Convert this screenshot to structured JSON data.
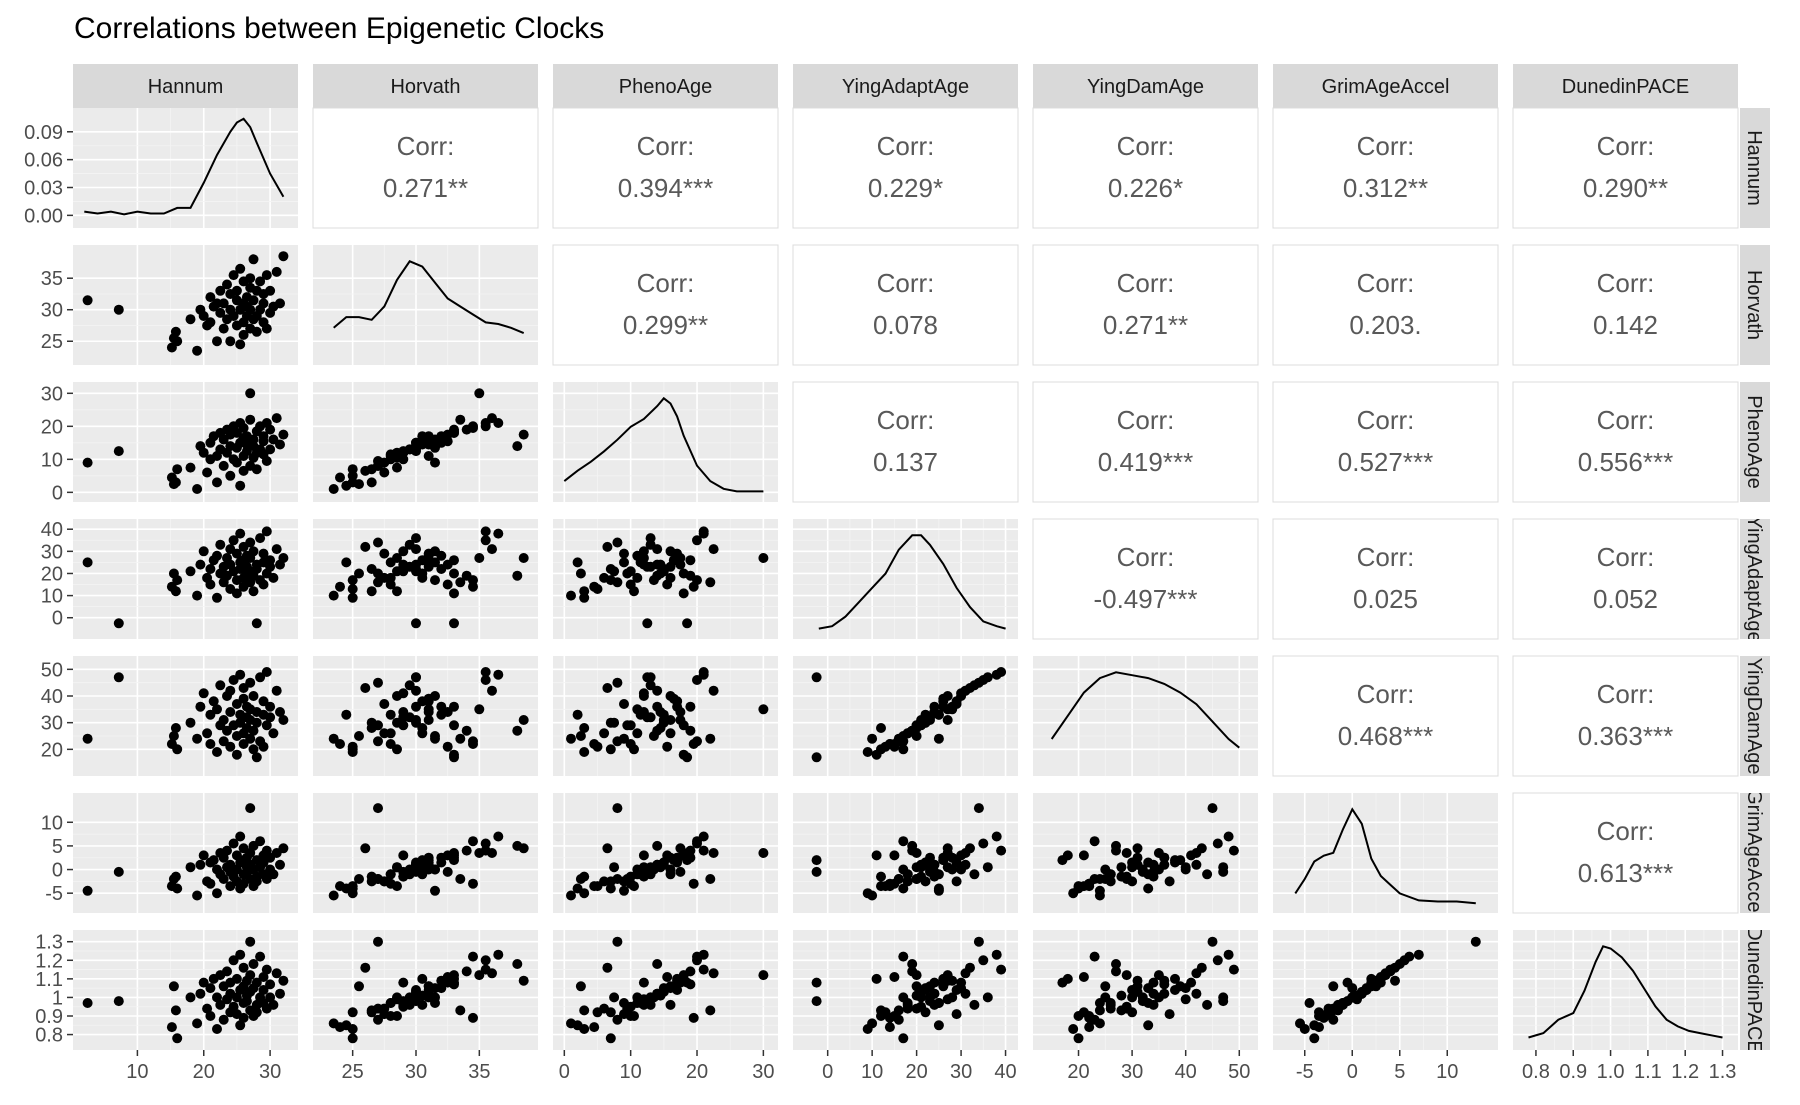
{
  "chart_data": {
    "type": "scatter",
    "title": "Correlations between  Epigenetic Clocks",
    "variables": [
      "Hannum",
      "Horvath",
      "PhenoAge",
      "YingAdaptAge",
      "YingDamAge",
      "GrimAgeAccel",
      "DunedinPACE"
    ],
    "row_strip_labels": [
      "Hannum",
      "Horvath",
      "PhenoAge",
      "YingAdaptAge",
      "YingDamAge",
      "GrimAgeAccel",
      "DunedinPACE"
    ],
    "corr_label": "Corr:",
    "correlations": [
      {
        "row": "Hannum",
        "col": "Horvath",
        "value": "0.271**"
      },
      {
        "row": "Hannum",
        "col": "PhenoAge",
        "value": "0.394***"
      },
      {
        "row": "Hannum",
        "col": "YingAdaptAge",
        "value": "0.229*"
      },
      {
        "row": "Hannum",
        "col": "YingDamAge",
        "value": "0.226*"
      },
      {
        "row": "Hannum",
        "col": "GrimAgeAccel",
        "value": "0.312**"
      },
      {
        "row": "Hannum",
        "col": "DunedinPACE",
        "value": "0.290**"
      },
      {
        "row": "Horvath",
        "col": "PhenoAge",
        "value": "0.299**"
      },
      {
        "row": "Horvath",
        "col": "YingAdaptAge",
        "value": "0.078"
      },
      {
        "row": "Horvath",
        "col": "YingDamAge",
        "value": "0.271**"
      },
      {
        "row": "Horvath",
        "col": "GrimAgeAccel",
        "value": "0.203."
      },
      {
        "row": "Horvath",
        "col": "DunedinPACE",
        "value": "0.142"
      },
      {
        "row": "PhenoAge",
        "col": "YingAdaptAge",
        "value": "0.137"
      },
      {
        "row": "PhenoAge",
        "col": "YingDamAge",
        "value": "0.419***"
      },
      {
        "row": "PhenoAge",
        "col": "GrimAgeAccel",
        "value": "0.527***"
      },
      {
        "row": "PhenoAge",
        "col": "DunedinPACE",
        "value": "0.556***"
      },
      {
        "row": "YingAdaptAge",
        "col": "YingDamAge",
        "value": "-0.497***"
      },
      {
        "row": "YingAdaptAge",
        "col": "GrimAgeAccel",
        "value": "0.025"
      },
      {
        "row": "YingAdaptAge",
        "col": "DunedinPACE",
        "value": "0.052"
      },
      {
        "row": "YingDamAge",
        "col": "GrimAgeAccel",
        "value": "0.468***"
      },
      {
        "row": "YingDamAge",
        "col": "DunedinPACE",
        "value": "0.363***"
      },
      {
        "row": "GrimAgeAccel",
        "col": "DunedinPACE",
        "value": "0.613***"
      }
    ],
    "axes": {
      "Hannum": {
        "range": [
          1.5,
          33
        ],
        "ticks": [
          10,
          20,
          30
        ]
      },
      "Horvath": {
        "range": [
          22.5,
          39
        ],
        "ticks": [
          25,
          30,
          35
        ]
      },
      "PhenoAge": {
        "range": [
          -0.5,
          31
        ],
        "ticks": [
          0,
          10,
          20,
          30
        ]
      },
      "YingAdaptAge": {
        "range": [
          -6,
          41
        ],
        "ticks": [
          0,
          10,
          20,
          30,
          40
        ]
      },
      "YingDamAge": {
        "range": [
          13,
          52
        ],
        "ticks": [
          20,
          30,
          40,
          50
        ]
      },
      "GrimAgeAccel": {
        "range": [
          -7.5,
          14.5
        ],
        "ticks": [
          -5,
          0,
          5,
          10
        ]
      },
      "DunedinPACE": {
        "range": [
          0.76,
          1.32
        ],
        "ticks": [
          0.8,
          0.9,
          1.0,
          1.1,
          1.2,
          1.3
        ]
      }
    },
    "diag_yaxis": {
      "range": [
        -0.005,
        0.107
      ],
      "ticks": [
        "0.00",
        "0.03",
        "0.06",
        "0.09"
      ]
    },
    "densities": {
      "Hannum": {
        "x": [
          2,
          4,
          6,
          8,
          10,
          12,
          14,
          16,
          18,
          20,
          22,
          24,
          25,
          26,
          27,
          28,
          30,
          32
        ],
        "y": [
          0.004,
          0.002,
          0.004,
          0.001,
          0.004,
          0.002,
          0.002,
          0.008,
          0.008,
          0.035,
          0.065,
          0.09,
          0.1,
          0.104,
          0.095,
          0.078,
          0.045,
          0.02
        ]
      },
      "Horvath": {
        "x": [
          23.5,
          24.5,
          25.5,
          26.5,
          27.5,
          28.5,
          29.5,
          30.5,
          31.5,
          32.5,
          33.5,
          34.5,
          35.5,
          36.5,
          37.5,
          38.5
        ],
        "y": [
          0.055,
          0.075,
          0.075,
          0.07,
          0.095,
          0.145,
          0.18,
          0.17,
          0.14,
          0.11,
          0.095,
          0.08,
          0.065,
          0.062,
          0.055,
          0.045
        ]
      },
      "PhenoAge": {
        "x": [
          0,
          2,
          4,
          6,
          8,
          10,
          12,
          14,
          15,
          16,
          17,
          18,
          20,
          22,
          24,
          26,
          28,
          30
        ],
        "y": [
          0.01,
          0.018,
          0.025,
          0.033,
          0.042,
          0.052,
          0.058,
          0.068,
          0.074,
          0.07,
          0.06,
          0.045,
          0.022,
          0.01,
          0.004,
          0.002,
          0.002,
          0.002
        ]
      },
      "YingAdaptAge": {
        "x": [
          -2,
          1,
          4,
          7,
          10,
          13,
          16,
          19,
          21,
          23,
          26,
          29,
          32,
          35,
          38,
          40
        ],
        "y": [
          0.001,
          0.002,
          0.006,
          0.012,
          0.018,
          0.024,
          0.034,
          0.04,
          0.04,
          0.036,
          0.028,
          0.018,
          0.01,
          0.004,
          0.002,
          0.001
        ]
      },
      "YingDamAge": {
        "x": [
          15,
          18,
          21,
          24,
          27,
          30,
          33,
          36,
          39,
          42,
          45,
          48,
          50
        ],
        "y": [
          0.01,
          0.018,
          0.026,
          0.031,
          0.033,
          0.032,
          0.031,
          0.029,
          0.026,
          0.022,
          0.016,
          0.01,
          0.007
        ]
      },
      "GrimAgeAccel": {
        "x": [
          -6,
          -5,
          -4,
          -3,
          -2,
          -1,
          0,
          1,
          2,
          3,
          4,
          5,
          7,
          9,
          11,
          13
        ],
        "y": [
          0.02,
          0.045,
          0.075,
          0.085,
          0.09,
          0.13,
          0.165,
          0.14,
          0.08,
          0.05,
          0.035,
          0.02,
          0.008,
          0.006,
          0.006,
          0.003
        ]
      },
      "DunedinPACE": {
        "x": [
          0.78,
          0.82,
          0.86,
          0.9,
          0.93,
          0.96,
          0.98,
          1.0,
          1.03,
          1.06,
          1.09,
          1.12,
          1.15,
          1.18,
          1.21,
          1.24,
          1.27,
          1.3
        ],
        "y": [
          0.2,
          0.4,
          1.0,
          1.3,
          2.3,
          3.6,
          4.3,
          4.2,
          3.8,
          3.2,
          2.4,
          1.6,
          1.0,
          0.7,
          0.5,
          0.4,
          0.3,
          0.2
        ]
      }
    },
    "samples": {
      "Hannum": [
        2.5,
        7.2,
        15.2,
        15.5,
        15.8,
        16.0,
        18.0,
        19.0,
        19.5,
        20.0,
        20.5,
        21.0,
        21.0,
        21.5,
        22.0,
        22.0,
        22.5,
        22.5,
        23.0,
        23.0,
        23.5,
        23.5,
        24.0,
        24.0,
        24.0,
        24.5,
        24.5,
        25.0,
        25.0,
        25.0,
        25.5,
        25.5,
        25.5,
        26.0,
        26.0,
        26.0,
        26.0,
        26.5,
        26.5,
        26.5,
        27.0,
        27.0,
        27.0,
        27.0,
        27.5,
        27.5,
        27.5,
        28.0,
        28.0,
        28.0,
        28.5,
        28.5,
        29.0,
        29.0,
        29.0,
        29.5,
        29.5,
        30.0,
        30.0,
        30.5,
        31.0,
        31.5,
        32.0
      ],
      "Horvath": [
        31.5,
        30.0,
        24.0,
        25.5,
        26.5,
        25.0,
        28.5,
        23.5,
        30.0,
        29.0,
        27.5,
        32.0,
        28.0,
        30.5,
        25.0,
        31.0,
        33.0,
        29.5,
        27.0,
        31.0,
        28.5,
        34.0,
        25.0,
        30.0,
        32.5,
        29.0,
        35.5,
        31.5,
        27.5,
        33.0,
        24.5,
        30.0,
        36.5,
        28.0,
        31.0,
        34.5,
        26.0,
        30.5,
        29.0,
        32.0,
        33.5,
        27.0,
        30.0,
        35.0,
        28.5,
        31.5,
        38.0,
        29.0,
        33.0,
        26.5,
        30.0,
        34.5,
        28.0,
        31.0,
        32.5,
        27.0,
        35.5,
        29.5,
        33.0,
        30.5,
        36.0,
        31.0,
        38.5
      ],
      "PhenoAge": [
        9.0,
        12.5,
        4.5,
        2.5,
        3.0,
        7.0,
        7.5,
        1.0,
        14.0,
        12.0,
        6.0,
        15.0,
        10.0,
        17.0,
        3.0,
        11.0,
        18.0,
        13.0,
        8.0,
        16.0,
        12.0,
        19.0,
        5.0,
        14.0,
        17.5,
        10.0,
        20.0,
        13.5,
        9.0,
        18.0,
        2.0,
        15.0,
        21.0,
        11.0,
        16.5,
        19.5,
        6.5,
        14.5,
        12.5,
        17.0,
        22.0,
        8.0,
        15.0,
        30.0,
        10.5,
        16.0,
        14.0,
        12.0,
        18.5,
        7.0,
        13.0,
        20.0,
        11.5,
        17.0,
        15.5,
        9.5,
        21.0,
        13.0,
        19.0,
        16.0,
        22.5,
        14.5,
        17.5
      ],
      "YingAdaptAge": [
        25.0,
        -2.5,
        14.0,
        20.0,
        12.0,
        17.0,
        21.0,
        10.0,
        24.0,
        30.0,
        18.0,
        22.0,
        15.0,
        26.0,
        9.0,
        28.0,
        20.0,
        33.0,
        16.0,
        23.0,
        27.0,
        19.0,
        13.0,
        31.0,
        24.0,
        21.0,
        35.0,
        17.0,
        29.0,
        11.0,
        25.0,
        22.0,
        38.0,
        18.0,
        26.0,
        14.0,
        32.0,
        20.0,
        23.0,
        28.0,
        16.0,
        34.0,
        21.0,
        27.0,
        12.0,
        30.0,
        19.0,
        24.0,
        -2.5,
        22.0,
        36.0,
        17.0,
        25.0,
        29.0,
        15.0,
        20.0,
        39.0,
        23.0,
        26.0,
        18.0,
        31.0,
        24.0,
        27.0
      ],
      "YingDamAge": [
        24.0,
        47.0,
        22.0,
        25.0,
        28.0,
        20.0,
        30.0,
        24.0,
        36.0,
        41.0,
        26.0,
        33.0,
        22.0,
        38.0,
        19.0,
        35.0,
        29.0,
        44.0,
        23.0,
        31.0,
        40.0,
        27.0,
        21.0,
        42.0,
        34.0,
        29.0,
        46.0,
        25.0,
        37.0,
        18.0,
        33.0,
        30.0,
        48.0,
        26.0,
        39.0,
        22.0,
        43.0,
        28.0,
        32.0,
        36.0,
        24.0,
        45.0,
        31.0,
        35.0,
        20.0,
        40.0,
        27.0,
        34.0,
        17.0,
        30.0,
        47.0,
        23.0,
        33.0,
        38.0,
        21.0,
        29.0,
        49.0,
        32.0,
        36.0,
        26.0,
        42.0,
        34.0,
        31.0
      ],
      "GrimAgeAccel": [
        -4.5,
        -0.5,
        -3.5,
        -2.0,
        -1.5,
        -4.0,
        0.5,
        -5.5,
        1.0,
        3.0,
        -2.5,
        1.5,
        -3.0,
        2.0,
        -5.0,
        0.0,
        3.5,
        -1.0,
        -2.0,
        2.5,
        0.5,
        4.0,
        -3.5,
        1.0,
        -0.5,
        -1.5,
        5.5,
        0.0,
        -2.5,
        3.0,
        -4.0,
        1.5,
        7.0,
        -1.0,
        2.0,
        -3.0,
        4.5,
        0.5,
        -0.5,
        2.5,
        -2.0,
        13.0,
        1.0,
        3.5,
        -3.5,
        0.0,
        5.0,
        -1.5,
        2.0,
        -2.5,
        0.5,
        6.0,
        -1.0,
        1.5,
        3.0,
        -2.0,
        4.0,
        0.0,
        2.5,
        -1.0,
        3.5,
        1.0,
        4.5
      ],
      "DunedinPACE": [
        0.97,
        0.98,
        0.84,
        1.06,
        0.93,
        0.78,
        1.0,
        0.86,
        1.02,
        1.08,
        0.94,
        1.05,
        0.9,
        1.1,
        0.83,
        1.0,
        1.12,
        0.96,
        0.88,
        1.06,
        0.99,
        1.14,
        0.92,
        1.02,
        1.08,
        0.95,
        1.2,
        1.0,
        0.91,
        1.1,
        0.85,
        1.04,
        1.23,
        0.97,
        1.06,
        0.89,
        1.16,
        1.01,
        0.98,
        1.09,
        0.93,
        1.3,
        1.03,
        1.12,
        0.9,
        1.05,
        1.18,
        0.96,
        1.08,
        0.92,
        1.0,
        1.22,
        0.97,
        1.04,
        1.11,
        0.94,
        1.15,
        1.0,
        1.07,
        0.96,
        1.13,
        1.02,
        1.09
      ]
    }
  }
}
